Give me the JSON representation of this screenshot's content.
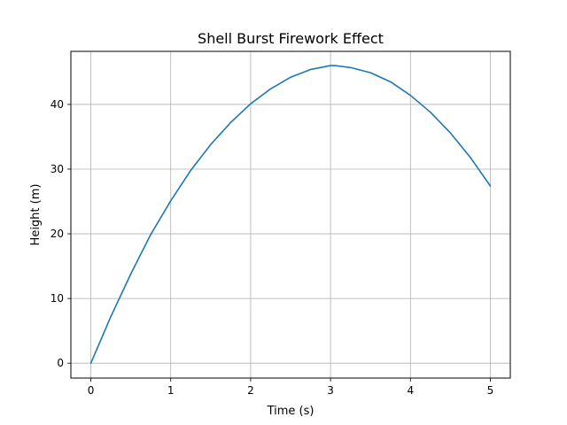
{
  "chart_data": {
    "type": "line",
    "title": "Shell Burst Firework Effect",
    "xlabel": "Time (s)",
    "ylabel": "Height (m)",
    "xlim": [
      -0.25,
      5.25
    ],
    "ylim": [
      -2.3,
      48.2
    ],
    "xticks": [
      0,
      1,
      2,
      3,
      4,
      5
    ],
    "yticks": [
      0,
      10,
      20,
      30,
      40
    ],
    "grid": true,
    "series": [
      {
        "color": "#1f77b4",
        "x": [
          0,
          0.25,
          0.5,
          0.75,
          1.0,
          1.25,
          1.5,
          1.75,
          2.0,
          2.25,
          2.5,
          2.75,
          3.0,
          3.06,
          3.25,
          3.5,
          3.75,
          4.0,
          4.25,
          4.5,
          4.75,
          5.0
        ],
        "y": [
          0,
          7.2,
          13.8,
          19.9,
          25.1,
          29.8,
          33.8,
          37.2,
          40.1,
          42.4,
          44.2,
          45.4,
          46.0,
          46.0,
          45.7,
          44.9,
          43.5,
          41.4,
          38.8,
          35.6,
          31.8,
          27.4
        ]
      }
    ]
  }
}
